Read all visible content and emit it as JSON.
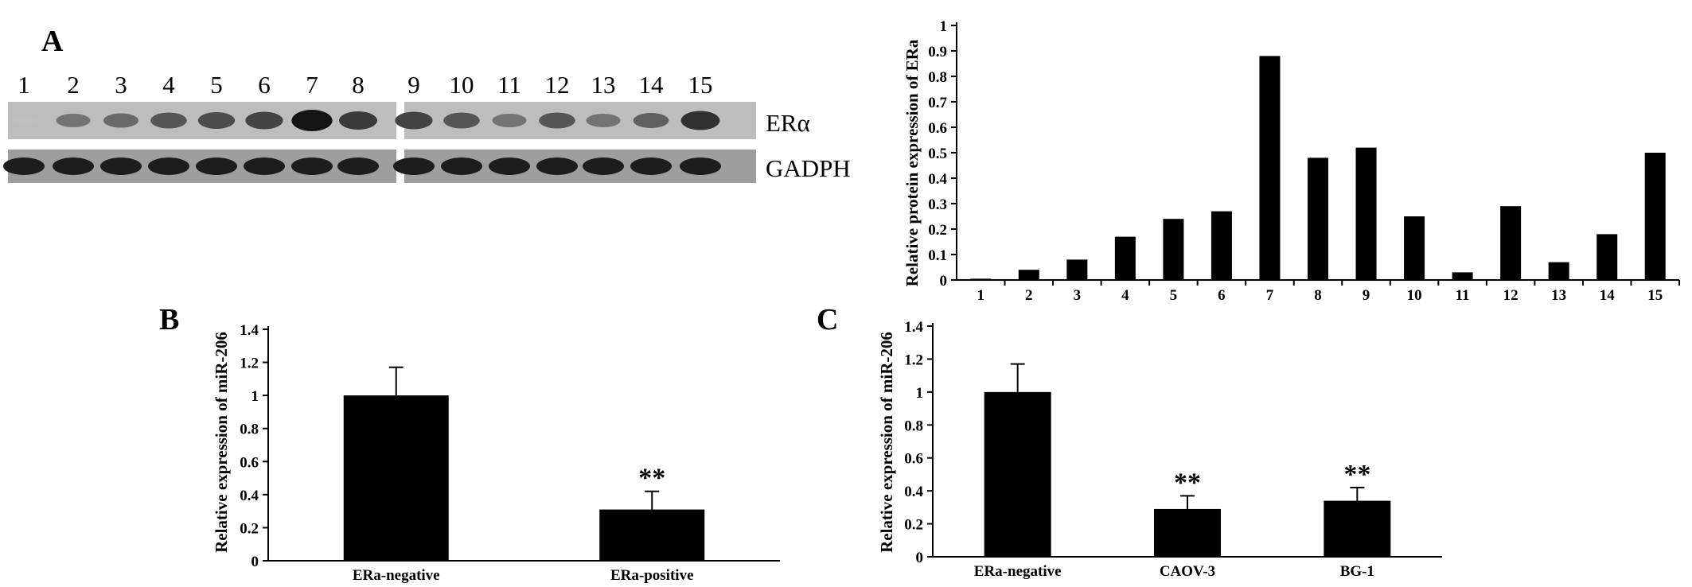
{
  "figure": {
    "panel_labels": [
      "A",
      "B",
      "C"
    ]
  },
  "blot": {
    "lanes": [
      "1",
      "2",
      "3",
      "4",
      "5",
      "6",
      "7",
      "8",
      "9",
      "10",
      "11",
      "12",
      "13",
      "14",
      "15"
    ],
    "rows": [
      {
        "name": "ERα",
        "intensity": [
          0.05,
          0.45,
          0.5,
          0.6,
          0.65,
          0.7,
          0.95,
          0.75,
          0.7,
          0.6,
          0.45,
          0.6,
          0.45,
          0.55,
          0.8
        ]
      },
      {
        "name": "GADPH",
        "intensity": [
          0.9,
          0.9,
          0.9,
          0.9,
          0.9,
          0.9,
          0.9,
          0.9,
          0.9,
          0.9,
          0.9,
          0.9,
          0.9,
          0.9,
          0.9
        ]
      }
    ]
  },
  "chart_data": [
    {
      "id": "A-right",
      "type": "bar",
      "title": "",
      "ylabel": "Relative protein expression of ERa",
      "xlabel": "",
      "categories": [
        "1",
        "2",
        "3",
        "4",
        "5",
        "6",
        "7",
        "8",
        "9",
        "10",
        "11",
        "12",
        "13",
        "14",
        "15"
      ],
      "values": [
        0.005,
        0.04,
        0.08,
        0.17,
        0.24,
        0.27,
        0.88,
        0.48,
        0.52,
        0.25,
        0.03,
        0.29,
        0.07,
        0.18,
        0.5
      ],
      "ylim": [
        0,
        1
      ],
      "yticks": [
        "0",
        "0.1",
        "0.2",
        "0.3",
        "0.4",
        "0.5",
        "0.6",
        "0.7",
        "0.8",
        "0.9",
        "1"
      ],
      "grid": false
    },
    {
      "id": "B",
      "type": "bar",
      "title": "",
      "ylabel": "Relative expression of miR-206",
      "xlabel": "",
      "categories": [
        "ERa-negative",
        "ERa-positive"
      ],
      "values": [
        1.0,
        0.31
      ],
      "errors": [
        0.17,
        0.11
      ],
      "annotations": [
        "",
        "**"
      ],
      "ylim": [
        0,
        1.4
      ],
      "yticks": [
        "0",
        "0.2",
        "0.4",
        "0.6",
        "0.8",
        "1",
        "1.2",
        "1.4"
      ],
      "grid": false
    },
    {
      "id": "C",
      "type": "bar",
      "title": "",
      "ylabel": "Relative expression of miR-206",
      "xlabel": "",
      "categories": [
        "ERa-negative",
        "CAOV-3",
        "BG-1"
      ],
      "values": [
        1.0,
        0.29,
        0.34
      ],
      "errors": [
        0.17,
        0.08,
        0.08
      ],
      "annotations": [
        "",
        "**",
        "**"
      ],
      "ylim": [
        0,
        1.4
      ],
      "yticks": [
        "0",
        "0.2",
        "0.4",
        "0.6",
        "0.8",
        "1",
        "1.2",
        "1.4"
      ],
      "grid": false
    }
  ]
}
